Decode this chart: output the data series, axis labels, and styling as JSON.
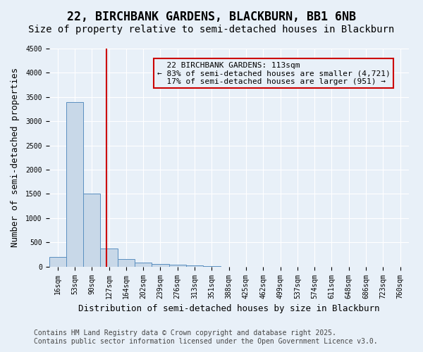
{
  "title1": "22, BIRCHBANK GARDENS, BLACKBURN, BB1 6NB",
  "title2": "Size of property relative to semi-detached houses in Blackburn",
  "xlabel": "Distribution of semi-detached houses by size in Blackburn",
  "ylabel": "Number of semi-detached properties",
  "footer1": "Contains HM Land Registry data © Crown copyright and database right 2025.",
  "footer2": "Contains public sector information licensed under the Open Government Licence v3.0.",
  "bins": [
    "16sqm",
    "53sqm",
    "90sqm",
    "127sqm",
    "164sqm",
    "202sqm",
    "239sqm",
    "276sqm",
    "313sqm",
    "351sqm",
    "388sqm",
    "425sqm",
    "462sqm",
    "499sqm",
    "537sqm",
    "574sqm",
    "611sqm",
    "648sqm",
    "686sqm",
    "723sqm",
    "760sqm"
  ],
  "values": [
    200,
    3400,
    1500,
    370,
    150,
    90,
    60,
    40,
    20,
    10,
    0,
    0,
    0,
    0,
    0,
    0,
    0,
    0,
    0,
    0,
    0
  ],
  "bar_color": "#c8d8e8",
  "bar_edge_color": "#5a8fc0",
  "property_size": 113,
  "property_label": "22 BIRCHBANK GARDENS: 113sqm",
  "pct_smaller": 83,
  "count_smaller": 4721,
  "pct_larger": 17,
  "count_larger": 951,
  "vline_color": "#cc0000",
  "vline_position": 2.85,
  "annotation_box_color": "#cc0000",
  "ylim": [
    0,
    4500
  ],
  "yticks": [
    0,
    500,
    1000,
    1500,
    2000,
    2500,
    3000,
    3500,
    4000,
    4500
  ],
  "background_color": "#e8f0f8",
  "grid_color": "#ffffff",
  "title1_fontsize": 12,
  "title2_fontsize": 10,
  "xlabel_fontsize": 9,
  "ylabel_fontsize": 9,
  "footer_fontsize": 7,
  "tick_fontsize": 7,
  "annotation_fontsize": 8
}
